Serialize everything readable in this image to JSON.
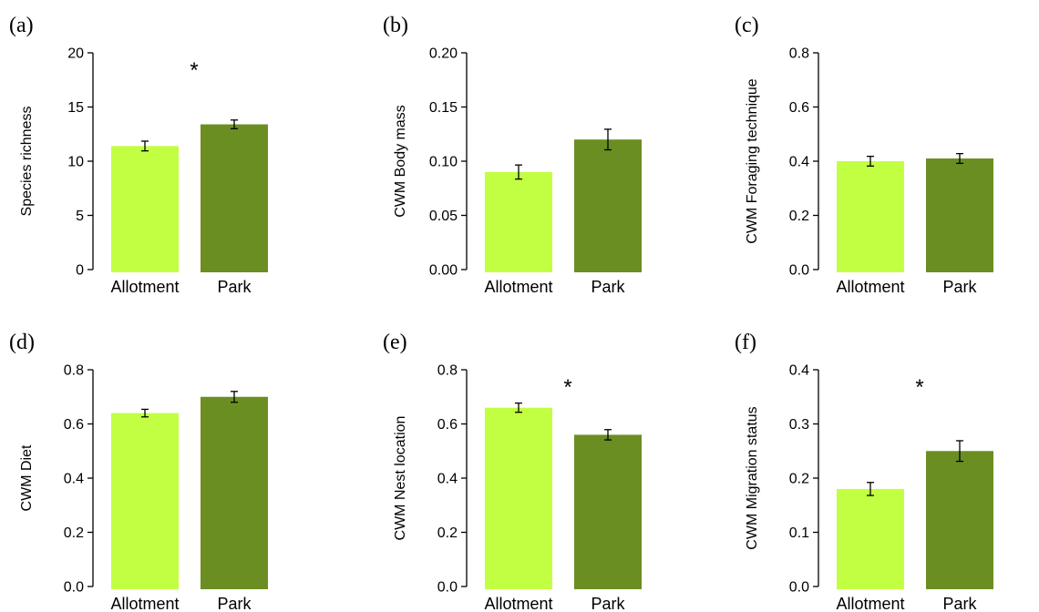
{
  "colors": {
    "allotment": "#c2ff42",
    "park": "#6b8e23"
  },
  "chart_data": [
    {
      "type": "bar",
      "panel": "(a)",
      "ylabel": "Species richness",
      "categories": [
        "Allotment",
        "Park"
      ],
      "values": [
        11.4,
        13.4
      ],
      "errors": [
        0.45,
        0.4
      ],
      "ylim": [
        0,
        20
      ],
      "yticks": [
        0,
        5,
        10,
        15,
        20
      ],
      "ytick_labels": [
        "0",
        "5",
        "10",
        "15",
        "20"
      ],
      "significance": "*"
    },
    {
      "type": "bar",
      "panel": "(b)",
      "ylabel": "CWM Body mass",
      "categories": [
        "Allotment",
        "Park"
      ],
      "values": [
        0.09,
        0.12
      ],
      "errors": [
        0.0065,
        0.0095
      ],
      "ylim": [
        0,
        0.2
      ],
      "yticks": [
        0,
        0.05,
        0.1,
        0.15,
        0.2
      ],
      "ytick_labels": [
        "0.00",
        "0.05",
        "0.10",
        "0.15",
        "0.20"
      ],
      "significance": ""
    },
    {
      "type": "bar",
      "panel": "(c)",
      "ylabel": "CWM Foraging technique",
      "categories": [
        "Allotment",
        "Park"
      ],
      "values": [
        0.4,
        0.41
      ],
      "errors": [
        0.018,
        0.018
      ],
      "ylim": [
        0,
        0.8
      ],
      "yticks": [
        0,
        0.2,
        0.4,
        0.6,
        0.8
      ],
      "ytick_labels": [
        "0.0",
        "0.2",
        "0.4",
        "0.6",
        "0.8"
      ],
      "significance": ""
    },
    {
      "type": "bar",
      "panel": "(d)",
      "ylabel": "CWM Diet",
      "categories": [
        "Allotment",
        "Park"
      ],
      "values": [
        0.64,
        0.7
      ],
      "errors": [
        0.014,
        0.02
      ],
      "ylim": [
        0,
        0.8
      ],
      "yticks": [
        0,
        0.2,
        0.4,
        0.6,
        0.8
      ],
      "ytick_labels": [
        "0.0",
        "0.2",
        "0.4",
        "0.6",
        "0.8"
      ],
      "significance": ""
    },
    {
      "type": "bar",
      "panel": "(e)",
      "ylabel": "CWM Nest location",
      "categories": [
        "Allotment",
        "Park"
      ],
      "values": [
        0.66,
        0.56
      ],
      "errors": [
        0.017,
        0.019
      ],
      "ylim": [
        0,
        0.8
      ],
      "yticks": [
        0,
        0.2,
        0.4,
        0.6,
        0.8
      ],
      "ytick_labels": [
        "0.0",
        "0.2",
        "0.4",
        "0.6",
        "0.8"
      ],
      "significance": "*"
    },
    {
      "type": "bar",
      "panel": "(f)",
      "ylabel": "CWM Migration status",
      "categories": [
        "Allotment",
        "Park"
      ],
      "values": [
        0.18,
        0.25
      ],
      "errors": [
        0.012,
        0.019
      ],
      "ylim": [
        0,
        0.4
      ],
      "yticks": [
        0,
        0.1,
        0.2,
        0.3,
        0.4
      ],
      "ytick_labels": [
        "0.0",
        "0.1",
        "0.2",
        "0.3",
        "0.4"
      ],
      "significance": "*"
    }
  ]
}
